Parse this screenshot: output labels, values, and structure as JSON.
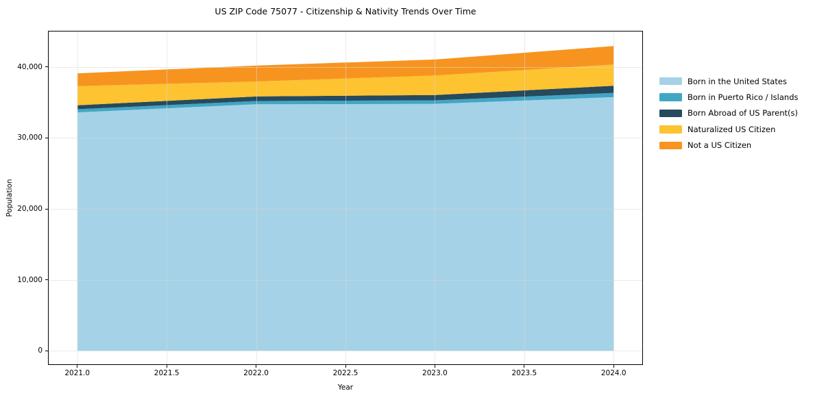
{
  "chart": {
    "title": "US ZIP Code 75077 - Citizenship & Nativity Trends Over Time",
    "xlabel": "Year",
    "ylabel": "Population"
  },
  "chart_data": {
    "type": "area",
    "stacked": true,
    "title": "US ZIP Code 75077 - Citizenship & Nativity Trends Over Time",
    "xlabel": "Year",
    "ylabel": "Population",
    "x": [
      2021,
      2022,
      2023,
      2024
    ],
    "series": [
      {
        "name": "Born in the United States",
        "color": "#a5d2e7",
        "values": [
          33600,
          34750,
          34800,
          35750
        ]
      },
      {
        "name": "Born in Puerto Rico / Islands",
        "color": "#41a6c4",
        "values": [
          450,
          450,
          500,
          600
        ]
      },
      {
        "name": "Born Abroad of US Parent(s)",
        "color": "#264a5e",
        "values": [
          550,
          650,
          750,
          1000
        ]
      },
      {
        "name": "Naturalized US Citizen",
        "color": "#fdc330",
        "values": [
          2700,
          2100,
          2750,
          3000
        ]
      },
      {
        "name": "Not a US Citizen",
        "color": "#f7941f",
        "values": [
          1800,
          2250,
          2250,
          2600
        ]
      }
    ],
    "totals": [
      39100,
      40200,
      41050,
      42950
    ],
    "xlim": [
      2020.84,
      2024.16
    ],
    "ylim": [
      -1900,
      45000
    ],
    "x_ticks": [
      {
        "value": 2021.0,
        "label": "2021.0"
      },
      {
        "value": 2021.5,
        "label": "2021.5"
      },
      {
        "value": 2022.0,
        "label": "2022.0"
      },
      {
        "value": 2022.5,
        "label": "2022.5"
      },
      {
        "value": 2023.0,
        "label": "2023.0"
      },
      {
        "value": 2023.5,
        "label": "2023.5"
      },
      {
        "value": 2024.0,
        "label": "2024.0"
      }
    ],
    "y_ticks": [
      {
        "value": 0,
        "label": "0"
      },
      {
        "value": 10000,
        "label": "10,000"
      },
      {
        "value": 20000,
        "label": "20,000"
      },
      {
        "value": 30000,
        "label": "30,000"
      },
      {
        "value": 40000,
        "label": "40,000"
      }
    ],
    "grid": true,
    "grid_color": "#d9d9d9",
    "legend_position": "right-outside"
  }
}
